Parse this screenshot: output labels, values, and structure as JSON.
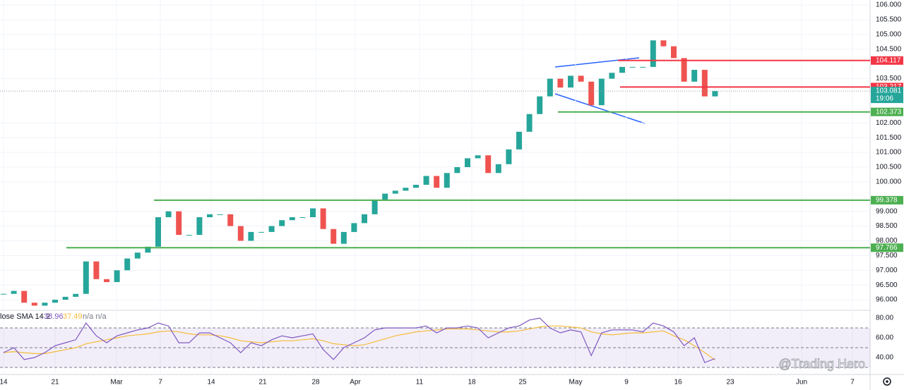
{
  "chart_data": [
    {
      "type": "candlestick",
      "x_labels": [
        "14",
        "21",
        "Mar",
        "7",
        "14",
        "21",
        "28",
        "Apr",
        "11",
        "18",
        "25",
        "May",
        "9",
        "16",
        "23",
        "Jun",
        "7"
      ],
      "values": [
        96.2,
        96.3,
        95.9,
        95.8,
        95.9,
        96.0,
        96.1,
        96.2,
        97.3,
        96.7,
        96.6,
        97.0,
        97.4,
        97.6,
        97.8,
        98.8,
        99.0,
        98.2,
        98.2,
        98.8,
        98.9,
        98.9,
        98.5,
        98.0,
        98.3,
        98.3,
        98.5,
        98.7,
        98.8,
        98.8,
        99.1,
        98.4,
        97.9,
        98.3,
        98.6,
        98.9,
        99.4,
        99.6,
        99.7,
        99.8,
        99.9,
        100.2,
        99.8,
        100.3,
        100.5,
        100.8,
        100.9,
        100.3,
        100.6,
        101.1,
        101.7,
        102.3,
        102.9,
        103.5,
        103.2,
        103.6,
        103.4,
        102.6,
        103.5,
        103.7,
        103.9,
        103.9,
        103.9,
        104.8,
        104.6,
        104.2,
        103.4,
        103.8,
        102.9,
        103.081
      ],
      "up_color": "#26a69a",
      "down_color": "#ef5350",
      "ylim": [
        95.69,
        106.17
      ],
      "yticks": [
        {
          "value": 106,
          "label": "106.000"
        },
        {
          "value": 105.5,
          "label": "105.500"
        },
        {
          "value": 105,
          "label": "105.000"
        },
        {
          "value": 104.5,
          "label": "104.500"
        },
        {
          "value": 103.5,
          "label": "103.500"
        },
        {
          "value": 102,
          "label": "102.000"
        },
        {
          "value": 101.5,
          "label": "101.500"
        },
        {
          "value": 101,
          "label": "101.000"
        },
        {
          "value": 100.5,
          "label": "100.500"
        },
        {
          "value": 100,
          "label": "100.000"
        },
        {
          "value": 99,
          "label": "99.000"
        },
        {
          "value": 98.5,
          "label": "98.500"
        },
        {
          "value": 98,
          "label": "98.000"
        },
        {
          "value": 97.5,
          "label": "97.500"
        },
        {
          "value": 97,
          "label": "97.000"
        },
        {
          "value": 96.5,
          "label": "96.500"
        },
        {
          "value": 96,
          "label": "96.000"
        }
      ],
      "grid": true,
      "levels": [
        {
          "value": 104.117,
          "color": "#f23645"
        },
        {
          "value": 103.217,
          "color": "#f23645"
        },
        {
          "value": 102.373,
          "color": "#4caf50"
        },
        {
          "value": 99.378,
          "color": "#4caf50"
        },
        {
          "value": 97.766,
          "color": "#4caf50"
        }
      ],
      "current_price": 103.081,
      "countdown": "19:06",
      "current_color": "#26a69a",
      "watermark": "@Trading Hero"
    },
    {
      "type": "line",
      "title": "lose SMA 14 2",
      "series": [
        {
          "color": "#7e57c2",
          "last_value": 38.96,
          "values": [
            45,
            50,
            38,
            40,
            45,
            52,
            55,
            58,
            75,
            62,
            55,
            62,
            65,
            68,
            70,
            75,
            72,
            55,
            55,
            65,
            65,
            60,
            55,
            45,
            55,
            52,
            58,
            62,
            60,
            62,
            64,
            48,
            38,
            50,
            55,
            60,
            68,
            70,
            70,
            70,
            70,
            72,
            65,
            70,
            70,
            72,
            70,
            60,
            65,
            70,
            72,
            78,
            80,
            70,
            65,
            68,
            66,
            42,
            65,
            68,
            68,
            68,
            66,
            75,
            72,
            66,
            52,
            60,
            35,
            38.96
          ]
        },
        {
          "color": "#f5bc3b",
          "last_value": 37.49,
          "values": [
            45,
            46,
            45,
            44,
            44,
            46,
            48,
            50,
            54,
            56,
            58,
            60,
            62,
            63,
            64,
            66,
            67,
            66,
            64,
            63,
            63,
            62,
            60,
            57,
            56,
            55,
            56,
            57,
            57,
            58,
            59,
            57,
            54,
            53,
            52,
            53,
            56,
            59,
            62,
            64,
            66,
            67,
            68,
            69,
            69,
            69,
            68,
            67,
            66,
            66,
            67,
            69,
            71,
            72,
            72,
            71,
            70,
            66,
            64,
            63,
            64,
            65,
            65,
            66,
            67,
            62,
            58,
            52,
            45,
            37.49
          ]
        }
      ],
      "legend_suffix": "n/a n/a",
      "ylim": [
        23.57,
        85.71
      ],
      "yticks": [
        {
          "value": 80,
          "label": "80.00"
        },
        {
          "value": 60,
          "label": "60.00"
        },
        {
          "value": 40,
          "label": "40.00"
        }
      ],
      "levels": [
        70,
        50,
        30
      ]
    }
  ]
}
